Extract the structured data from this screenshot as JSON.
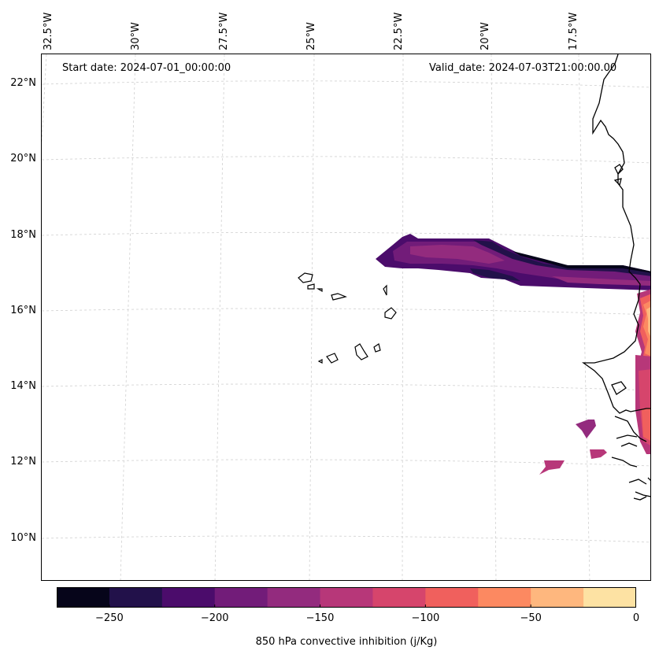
{
  "header": {
    "start_date": "Start date: 2024-07-01_00:00:00",
    "valid_date": "Valid_date: 2024-07-03T21:00:00.00"
  },
  "axes": {
    "longitude_labels": [
      "32.5°W",
      "30°W",
      "27.5°W",
      "25°W",
      "22.5°W",
      "20°W",
      "17.5°W"
    ],
    "latitude_labels": [
      "22°N",
      "20°N",
      "18°N",
      "16°N",
      "14°N",
      "12°N",
      "10°N"
    ]
  },
  "colorbar": {
    "label": "850 hPa convective inhibition (j/Kg)",
    "tick_labels": [
      "−250",
      "−200",
      "−150",
      "−100",
      "−50",
      "0"
    ],
    "levels": [
      -275,
      -250,
      -225,
      -200,
      -175,
      -150,
      -125,
      -100,
      -75,
      -50,
      -25,
      0
    ],
    "colors": [
      "#06051a",
      "#22114a",
      "#4b0c6b",
      "#721c79",
      "#932b7e",
      "#b73779",
      "#d6456c",
      "#f0605d",
      "#fc8961",
      "#feb77e",
      "#fde2a3"
    ]
  },
  "map": {
    "field": "850 hPa convective inhibition",
    "units": "j/Kg",
    "coastline_color": "#000000",
    "gridline_color": "#cccccc"
  }
}
